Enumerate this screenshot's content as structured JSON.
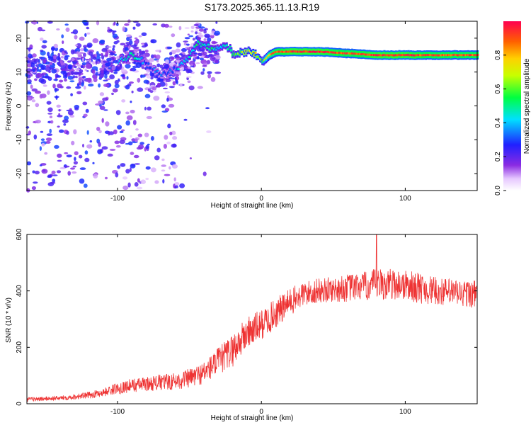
{
  "figure_title": "S173.2025.365.11.13.R19",
  "colormap": "rainbow (white-purple-blue-cyan-green-yellow-orange-red)",
  "chart_data": [
    {
      "type": "heatmap",
      "title": "S173.2025.365.11.13.R19",
      "xlabel": "Height of straight line (km)",
      "ylabel": "Frequency (Hz)",
      "xlim": [
        -163,
        150
      ],
      "ylim": [
        -25,
        25
      ],
      "xticks": [
        -100,
        0,
        100
      ],
      "yticks": [
        -20,
        -10,
        0,
        10,
        20
      ],
      "colorbar": {
        "label": "Normalized spectral amplitude",
        "range": [
          0.0,
          1.0
        ],
        "ticks": [
          "0.0",
          "0.2",
          "0.4",
          "0.6",
          "0.8"
        ],
        "tick_values": [
          0.0,
          0.2,
          0.4,
          0.6,
          0.8
        ]
      },
      "signal_track": {
        "description": "dominant tone frequency vs height",
        "x": [
          -160,
          -140,
          -120,
          -100,
          -90,
          -80,
          -70,
          -60,
          -50,
          -45,
          -40,
          -35,
          -30,
          -25,
          -20,
          -15,
          -10,
          -5,
          0,
          5,
          10,
          20,
          40,
          60,
          80,
          100,
          120,
          150
        ],
        "freq": [
          12,
          11,
          12,
          13,
          15,
          12,
          9,
          11,
          15,
          19,
          18,
          17,
          17,
          18,
          15,
          16,
          16,
          15,
          13,
          15,
          16,
          16,
          16,
          15.5,
          15,
          15,
          15,
          15
        ],
        "amplitude": [
          0.35,
          0.35,
          0.35,
          0.35,
          0.5,
          0.3,
          0.3,
          0.35,
          0.45,
          0.5,
          0.45,
          0.5,
          0.4,
          0.5,
          0.55,
          0.65,
          0.7,
          0.75,
          0.55,
          0.8,
          0.9,
          0.95,
          0.95,
          0.9,
          0.95,
          0.95,
          0.9,
          0.9
        ]
      },
      "noise_regions": [
        {
          "x": [
            -163,
            -30
          ],
          "freq": [
            -25,
            25
          ],
          "level": 0.2,
          "description": "scattered low-amplitude noise left of -30 km"
        }
      ]
    },
    {
      "type": "line",
      "title": "",
      "xlabel": "Height of straight line (km)",
      "ylabel": "SNR (10 * v/v)",
      "xlim": [
        -163,
        150
      ],
      "ylim": [
        0,
        600
      ],
      "xticks": [
        -100,
        0,
        100
      ],
      "yticks": [
        0,
        200,
        400,
        600
      ],
      "color": "#ee3333",
      "series": [
        {
          "name": "SNR",
          "x": [
            -163,
            -150,
            -140,
            -130,
            -120,
            -110,
            -100,
            -90,
            -80,
            -70,
            -60,
            -50,
            -40,
            -30,
            -20,
            -10,
            0,
            10,
            20,
            30,
            40,
            50,
            60,
            70,
            80,
            90,
            100,
            110,
            120,
            130,
            140,
            150
          ],
          "y": [
            15,
            18,
            20,
            25,
            30,
            40,
            55,
            65,
            70,
            75,
            80,
            90,
            110,
            150,
            190,
            250,
            280,
            320,
            360,
            390,
            400,
            405,
            410,
            415,
            420,
            425,
            420,
            410,
            400,
            395,
            390,
            390
          ],
          "noise_amplitude": [
            8,
            8,
            8,
            10,
            12,
            15,
            20,
            25,
            25,
            30,
            30,
            35,
            40,
            50,
            60,
            60,
            55,
            55,
            50,
            45,
            45,
            45,
            50,
            50,
            60,
            55,
            55,
            55,
            50,
            50,
            50,
            50
          ]
        }
      ],
      "peak_annotation": {
        "x": 80,
        "y": 600
      }
    }
  ]
}
